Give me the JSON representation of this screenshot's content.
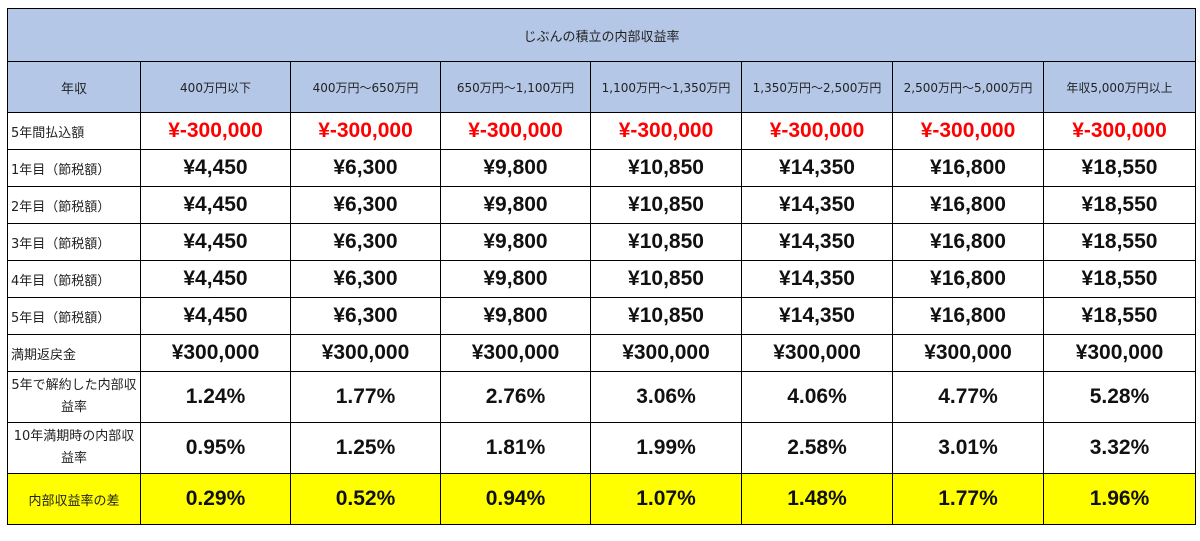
{
  "title": "じぶんの積立の内部収益率",
  "header": {
    "label": "年収",
    "columns": [
      "400万円以下",
      "400万円～650万円",
      "650万円～1,100万円",
      "1,100万円～1,350万円",
      "1,350万円～2,500万円",
      "2,500万円～5,000万円",
      "年収5,000万円以上"
    ]
  },
  "rows": [
    {
      "label": "5年間払込額",
      "values": [
        "¥-300,000",
        "¥-300,000",
        "¥-300,000",
        "¥-300,000",
        "¥-300,000",
        "¥-300,000",
        "¥-300,000"
      ]
    },
    {
      "label": "1年目（節税額）",
      "values": [
        "¥4,450",
        "¥6,300",
        "¥9,800",
        "¥10,850",
        "¥14,350",
        "¥16,800",
        "¥18,550"
      ]
    },
    {
      "label": "2年目（節税額）",
      "values": [
        "¥4,450",
        "¥6,300",
        "¥9,800",
        "¥10,850",
        "¥14,350",
        "¥16,800",
        "¥18,550"
      ]
    },
    {
      "label": "3年目（節税額）",
      "values": [
        "¥4,450",
        "¥6,300",
        "¥9,800",
        "¥10,850",
        "¥14,350",
        "¥16,800",
        "¥18,550"
      ]
    },
    {
      "label": "4年目（節税額）",
      "values": [
        "¥4,450",
        "¥6,300",
        "¥9,800",
        "¥10,850",
        "¥14,350",
        "¥16,800",
        "¥18,550"
      ]
    },
    {
      "label": "5年目（節税額）",
      "values": [
        "¥4,450",
        "¥6,300",
        "¥9,800",
        "¥10,850",
        "¥14,350",
        "¥16,800",
        "¥18,550"
      ]
    },
    {
      "label": "満期返戻金",
      "values": [
        "¥300,000",
        "¥300,000",
        "¥300,000",
        "¥300,000",
        "¥300,000",
        "¥300,000",
        "¥300,000"
      ]
    },
    {
      "label": "5年で解約した内部収益率",
      "values": [
        "1.24%",
        "1.77%",
        "2.76%",
        "3.06%",
        "4.06%",
        "4.77%",
        "5.28%"
      ]
    },
    {
      "label": "10年満期時の内部収益率",
      "values": [
        "0.95%",
        "1.25%",
        "1.81%",
        "1.99%",
        "2.58%",
        "3.01%",
        "3.32%"
      ]
    },
    {
      "label": "内部収益率の差",
      "values": [
        "0.29%",
        "0.52%",
        "0.94%",
        "1.07%",
        "1.48%",
        "1.77%",
        "1.96%"
      ]
    }
  ],
  "colors": {
    "header_bg": "#b4c7e7",
    "negative": "#ff0000",
    "highlight_bg": "#ffff00"
  }
}
